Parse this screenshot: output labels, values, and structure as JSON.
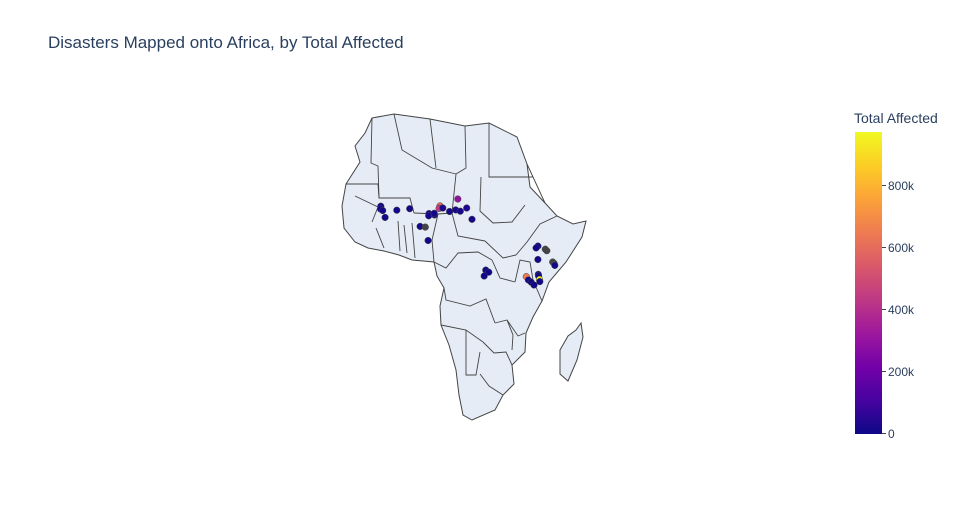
{
  "title": "Disasters Mapped onto Africa, by Total Affected",
  "colorbar": {
    "title": "Total Affected",
    "ticks": [
      "0",
      "200k",
      "400k",
      "600k",
      "800k"
    ]
  },
  "colors": {
    "land": "#e5ecf6",
    "border": "#444444",
    "missing": "#444444",
    "scale": [
      "#0d0887",
      "#46039f",
      "#7201a8",
      "#9c179e",
      "#bd3786",
      "#d8576b",
      "#ed7953",
      "#fb9f3a",
      "#fdca26",
      "#f0f921"
    ]
  },
  "chart_data": {
    "type": "scatter",
    "projection": "geographic",
    "region": "Africa",
    "color_by": "Total Affected",
    "color_range": [
      0,
      970000
    ],
    "points": [
      {
        "lat": 14.8,
        "lon": -17.2,
        "value": 8000
      },
      {
        "lat": 13.9,
        "lon": -17.3,
        "value": 5000
      },
      {
        "lat": 13.4,
        "lon": -16.6,
        "value": 12000
      },
      {
        "lat": 13.5,
        "lon": -12.0,
        "value": 9000
      },
      {
        "lat": 11.2,
        "lon": -15.8,
        "value": 7000
      },
      {
        "lat": 14.0,
        "lon": -7.8,
        "value": 10000
      },
      {
        "lat": 14.9,
        "lon": 2.1,
        "value": 580000
      },
      {
        "lat": 14.1,
        "lon": 1.8,
        "value": 450000
      },
      {
        "lat": 14.2,
        "lon": 3.0,
        "value": 30000
      },
      {
        "lat": 17.1,
        "lon": 7.9,
        "value": 300000
      },
      {
        "lat": 13.6,
        "lon": 7.2,
        "value": 25000
      },
      {
        "lat": 14.2,
        "lon": 10.8,
        "value": 40000
      },
      {
        "lat": 13.2,
        "lon": 8.7,
        "value": 20000
      },
      {
        "lat": 13.1,
        "lon": 5.2,
        "value": 15000
      },
      {
        "lat": 12.4,
        "lon": -1.5,
        "value": 18000
      },
      {
        "lat": 11.7,
        "lon": -1.6,
        "value": 12000
      },
      {
        "lat": 12.0,
        "lon": 0.3,
        "value": 9000
      },
      {
        "lat": 12.5,
        "lon": 0.2,
        "value": 11000
      },
      {
        "lat": 10.6,
        "lon": 12.5,
        "value": 14000
      },
      {
        "lat": 8.3,
        "lon": -4.4,
        "value": 10000
      },
      {
        "lat": 8.1,
        "lon": -2.7,
        "value": null
      },
      {
        "lat": 3.8,
        "lon": -1.8,
        "value": 6000
      },
      {
        "lat": 2.0,
        "lon": 34.0,
        "value": 7000
      },
      {
        "lat": 1.4,
        "lon": 33.4,
        "value": 6000
      },
      {
        "lat": 1.0,
        "lon": 36.4,
        "value": null
      },
      {
        "lat": 0.5,
        "lon": 36.9,
        "value": null
      },
      {
        "lat": -2.3,
        "lon": 34.0,
        "value": 8000
      },
      {
        "lat": -3.1,
        "lon": 38.8,
        "value": null
      },
      {
        "lat": -3.6,
        "lon": 39.3,
        "value": null
      },
      {
        "lat": -4.2,
        "lon": 39.5,
        "value": 9000
      },
      {
        "lat": -7.1,
        "lon": 34.1,
        "value": 10000
      },
      {
        "lat": -7.6,
        "lon": 34.2,
        "value": 8000
      },
      {
        "lat": -7.8,
        "lon": 30.2,
        "value": 650000
      },
      {
        "lat": -8.7,
        "lon": 34.5,
        "value": 970000
      },
      {
        "lat": -9.4,
        "lon": 34.6,
        "value": 12000
      },
      {
        "lat": -5.7,
        "lon": 17.0,
        "value": 9000
      },
      {
        "lat": -6.4,
        "lon": 18.0,
        "value": 7000
      },
      {
        "lat": -7.6,
        "lon": 16.5,
        "value": 11000
      },
      {
        "lat": -8.9,
        "lon": 30.9,
        "value": 8000
      },
      {
        "lat": -9.6,
        "lon": 31.8,
        "value": 10000
      },
      {
        "lat": -10.5,
        "lon": 32.7,
        "value": 6000
      }
    ]
  }
}
